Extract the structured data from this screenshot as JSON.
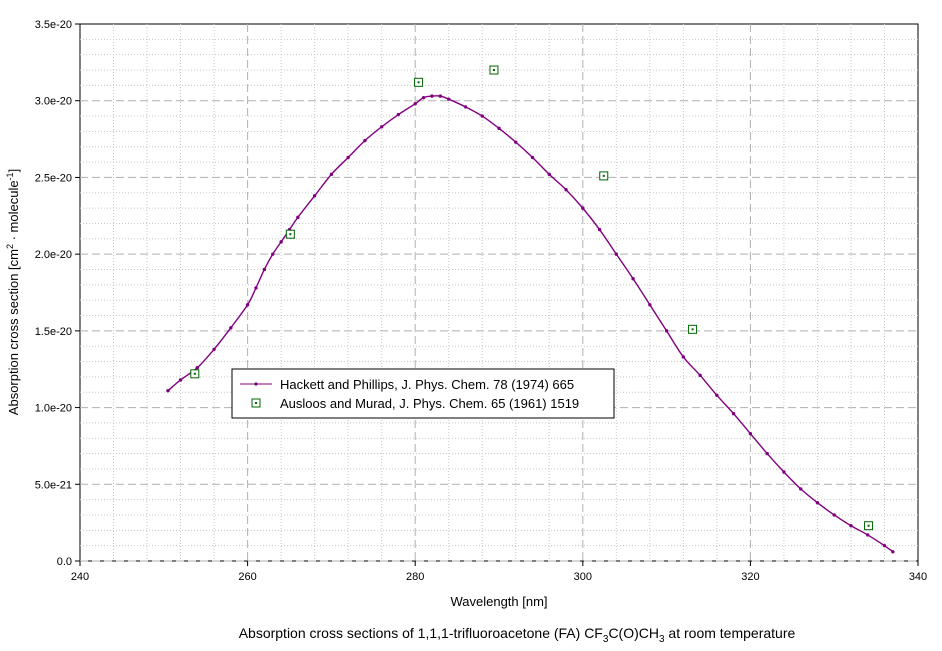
{
  "chart_data": {
    "type": "line",
    "xlabel": "Wavelength [nm]",
    "ylabel_parts": [
      "Absorption cross section [cm",
      "2",
      " · molecule",
      "-1",
      "]"
    ],
    "caption_parts": [
      "Absorption cross sections of 1,1,1-trifluoroacetone (FA) CF",
      "3",
      "C(O)CH",
      "3",
      " at room temperature"
    ],
    "xlim": [
      240,
      340
    ],
    "ylim": [
      0,
      3.5e-20
    ],
    "x_ticks": [
      240,
      260,
      280,
      300,
      320,
      340
    ],
    "y_ticks": [
      0,
      5e-21,
      1e-20,
      1.5e-20,
      2e-20,
      2.5e-20,
      3e-20,
      3.5e-20
    ],
    "x_tick_labels": [
      "240",
      "260",
      "280",
      "300",
      "320",
      "340"
    ],
    "y_tick_labels": [
      "0.0",
      "5.0e-21",
      "1.0e-20",
      "1.5e-20",
      "2.0e-20",
      "2.5e-20",
      "3.0e-20",
      "3.5e-20"
    ],
    "grid": true,
    "legend_position": "center-left",
    "series": [
      {
        "name": "Hackett and Phillips, J. Phys. Chem. 78 (1974) 665",
        "style": "line-dots",
        "color": "#800080",
        "x": [
          250.5,
          252,
          254,
          256,
          258,
          260,
          261,
          262,
          263,
          264,
          265,
          266,
          268,
          270,
          272,
          274,
          276,
          278,
          280,
          281,
          282,
          283,
          284,
          286,
          288,
          290,
          292,
          294,
          296,
          298,
          300,
          302,
          304,
          306,
          308,
          310,
          312,
          314,
          316,
          318,
          320,
          322,
          324,
          326,
          328,
          330,
          332,
          334,
          336,
          337
        ],
        "y": [
          1.11e-20,
          1.18e-20,
          1.26e-20,
          1.38e-20,
          1.52e-20,
          1.67e-20,
          1.78e-20,
          1.9e-20,
          2e-20,
          2.08e-20,
          2.16e-20,
          2.24e-20,
          2.38e-20,
          2.52e-20,
          2.63e-20,
          2.74e-20,
          2.83e-20,
          2.91e-20,
          2.98e-20,
          3.02e-20,
          3.03e-20,
          3.03e-20,
          3.01e-20,
          2.96e-20,
          2.9e-20,
          2.82e-20,
          2.73e-20,
          2.63e-20,
          2.52e-20,
          2.42e-20,
          2.3e-20,
          2.16e-20,
          2e-20,
          1.84e-20,
          1.67e-20,
          1.5e-20,
          1.33e-20,
          1.21e-20,
          1.08e-20,
          9.6e-21,
          8.3e-21,
          7e-21,
          5.8e-21,
          4.7e-21,
          3.8e-21,
          3e-21,
          2.3e-21,
          1.7e-21,
          1e-21,
          6e-22
        ]
      },
      {
        "name": "Ausloos and Murad, J. Phys. Chem. 65 (1961) 1519",
        "style": "square-markers",
        "color": "#006400",
        "x": [
          253.7,
          265.1,
          280.4,
          289.4,
          302.5,
          313.1,
          334.1
        ],
        "y": [
          1.22e-20,
          2.13e-20,
          3.12e-20,
          3.2e-20,
          2.51e-20,
          1.51e-20,
          2.3e-21
        ]
      }
    ]
  }
}
